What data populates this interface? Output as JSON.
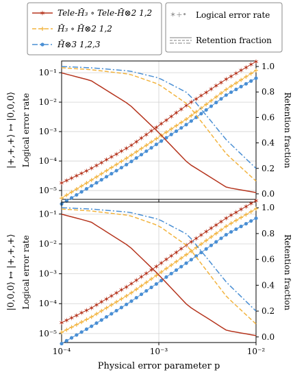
{
  "chart_data": [
    {
      "type": "line",
      "ylabel_left": "Logical error rate",
      "ylabel_right": "Retention fraction",
      "row_label": "|+,+,+⟩ ↦ |0,0,0⟩",
      "xscale": "log",
      "yscale_left": "log",
      "xlim": [
        0.0001,
        0.01
      ],
      "ylim_left": [
        5e-06,
        0.25
      ],
      "ylim_right": [
        0.0,
        1.0
      ],
      "x": [
        0.0001,
        0.0002,
        0.0005,
        0.001,
        0.002,
        0.005,
        0.01
      ],
      "series": [
        {
          "name": "Tele-H̄₃ ∘ Tele-H̄⊗2 1,2",
          "metric": "logical_error_rate",
          "color": "#b5341d",
          "values": [
            1.8e-05,
            5.5e-05,
            0.00031,
            0.0016,
            0.0085,
            0.062,
            0.24
          ]
        },
        {
          "name": "H̄₃ ∘ H̄⊗2 1,2",
          "metric": "logical_error_rate",
          "color": "#f2b33d",
          "values": [
            5.5e-06,
            2.2e-05,
            0.000145,
            0.00065,
            0.0029,
            0.028,
            0.12
          ]
        },
        {
          "name": "H̄⊗3 1,2,3",
          "metric": "logical_error_rate",
          "color": "#4a8fd4",
          "values": [
            3.5e-06,
            1.4e-05,
            8.8e-05,
            0.00042,
            0.0019,
            0.018,
            0.065
          ]
        },
        {
          "name": "Tele-H̄₃ ∘ Tele-H̄⊗2 1,2",
          "metric": "retention_fraction",
          "color": "#b5341d",
          "values": [
            0.95,
            0.89,
            0.7,
            0.48,
            0.24,
            0.05,
            0.01
          ]
        },
        {
          "name": "H̄₃ ∘ H̄⊗2 1,2",
          "metric": "retention_fraction",
          "color": "#f2b33d",
          "values": [
            0.99,
            0.975,
            0.94,
            0.86,
            0.7,
            0.31,
            0.1
          ]
        },
        {
          "name": "H̄⊗3 1,2,3",
          "metric": "retention_fraction",
          "color": "#4a8fd4",
          "values": [
            1.0,
            0.99,
            0.965,
            0.91,
            0.79,
            0.42,
            0.2
          ]
        }
      ]
    },
    {
      "type": "line",
      "ylabel_left": "Logical error rate",
      "ylabel_right": "Retention fraction",
      "row_label": "|0,0,0⟩ ↦ |+,+,+⟩",
      "xlabel": "Physical error parameter p",
      "xscale": "log",
      "yscale_left": "log",
      "xlim": [
        0.0001,
        0.01
      ],
      "ylim_left": [
        5e-06,
        0.25
      ],
      "ylim_right": [
        0.0,
        1.0
      ],
      "x": [
        0.0001,
        0.0002,
        0.0005,
        0.001,
        0.002,
        0.005,
        0.01
      ],
      "series": [
        {
          "name": "Tele-H̄₃ ∘ Tele-H̄⊗2 1,2",
          "metric": "logical_error_rate",
          "color": "#b5341d",
          "values": [
            2.3e-05,
            7e-05,
            0.00042,
            0.002,
            0.01,
            0.075,
            0.28
          ]
        },
        {
          "name": "H̄₃ ∘ H̄⊗2 1,2",
          "metric": "logical_error_rate",
          "color": "#f2b33d",
          "values": [
            1.1e-05,
            3.5e-05,
            0.00021,
            0.001,
            0.0048,
            0.04,
            0.15
          ]
        },
        {
          "name": "H̄⊗3 1,2,3",
          "metric": "logical_error_rate",
          "color": "#4a8fd4",
          "values": [
            4.6e-06,
            1.7e-05,
            0.00011,
            0.00052,
            0.0025,
            0.021,
            0.072
          ]
        },
        {
          "name": "Tele-H̄₃ ∘ Tele-H̄⊗2 1,2",
          "metric": "retention_fraction",
          "color": "#b5341d",
          "values": [
            0.95,
            0.89,
            0.7,
            0.48,
            0.24,
            0.05,
            0.01
          ]
        },
        {
          "name": "H̄₃ ∘ H̄⊗2 1,2",
          "metric": "retention_fraction",
          "color": "#f2b33d",
          "values": [
            0.99,
            0.975,
            0.94,
            0.86,
            0.7,
            0.31,
            0.1
          ]
        },
        {
          "name": "H̄⊗3 1,2,3",
          "metric": "retention_fraction",
          "color": "#4a8fd4",
          "values": [
            1.0,
            0.99,
            0.965,
            0.91,
            0.79,
            0.42,
            0.2
          ]
        }
      ]
    }
  ],
  "legend": {
    "entries": [
      "Tele-H̄₃ ∘ Tele-H̄⊗2 1,2",
      "H̄₃ ∘ H̄⊗2 1,2",
      "H̄⊗3 1,2,3"
    ],
    "metrics": [
      "Logical error rate",
      "Retention fraction"
    ]
  },
  "axis_ticks": {
    "x": [
      "10⁻⁴",
      "10⁻³",
      "10⁻²"
    ],
    "y_left": [
      "10⁻⁵",
      "10⁻⁴",
      "10⁻³",
      "10⁻²",
      "10⁻¹"
    ],
    "y_right": [
      "0.0",
      "0.2",
      "0.4",
      "0.6",
      "0.8",
      "1.0"
    ]
  }
}
